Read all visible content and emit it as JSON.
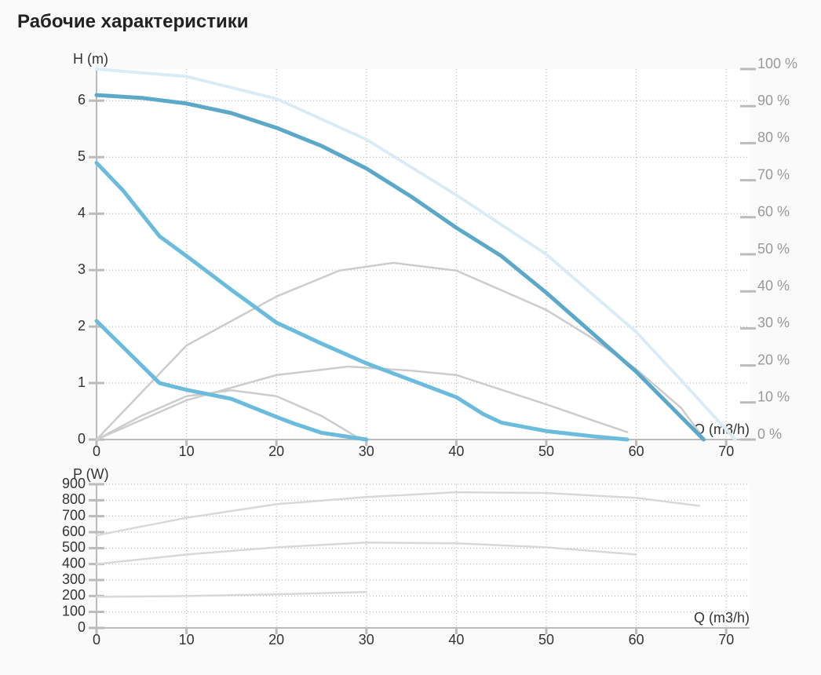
{
  "title": "Рабочие характеристики",
  "chart_data": [
    {
      "type": "line",
      "y_label": "H (m)",
      "x_label": "Q (m3/h)",
      "grid": true,
      "xlim": [
        0,
        72.6
      ],
      "xticks": [
        0,
        10,
        20,
        30,
        40,
        50,
        60,
        70
      ],
      "ylim": [
        0,
        6.56
      ],
      "yticks": [
        0,
        1,
        2,
        3,
        4,
        5,
        6
      ],
      "y2lim": [
        0,
        100
      ],
      "y2ticks": [
        {
          "value": 0,
          "label": "0 %"
        },
        {
          "value": 10,
          "label": "10 %"
        },
        {
          "value": 20,
          "label": "20 %"
        },
        {
          "value": 30,
          "label": "30 %"
        },
        {
          "value": 40,
          "label": "40 %"
        },
        {
          "value": 50,
          "label": "50 %"
        },
        {
          "value": 60,
          "label": "60 %"
        },
        {
          "value": 70,
          "label": "70 %"
        },
        {
          "value": 80,
          "label": "80 %"
        },
        {
          "value": 90,
          "label": "90 %"
        },
        {
          "value": 100,
          "label": "100 %"
        }
      ],
      "series": [
        {
          "color": "#d9ecf5",
          "axis": "y2",
          "line_style": "dotted",
          "x": [
            0,
            10,
            20,
            30,
            40,
            50,
            60,
            65,
            71
          ],
          "values": [
            100,
            98,
            92,
            81,
            66,
            50,
            29,
            16,
            0
          ]
        },
        {
          "color": "#cccccc",
          "axis": "y2",
          "x": [
            0,
            10,
            20,
            27,
            33,
            40,
            50,
            55,
            60,
            65,
            67
          ],
          "values": [
            0,
            25.4,
            38.6,
            45.6,
            47.7,
            45.6,
            35,
            27.5,
            19,
            8.5,
            2
          ]
        },
        {
          "color": "#cccccc",
          "axis": "y2",
          "x": [
            0,
            10,
            20,
            28,
            35,
            40,
            50,
            55,
            59
          ],
          "values": [
            0,
            10.6,
            17.4,
            19.7,
            18.6,
            17.4,
            9.5,
            5.3,
            2
          ]
        },
        {
          "color": "#cccccc",
          "axis": "y2",
          "x": [
            0,
            5,
            10,
            15,
            20,
            25,
            29
          ],
          "values": [
            0,
            6.4,
            11.7,
            13.3,
            11.7,
            6.4,
            0.6
          ]
        },
        {
          "color": "#5ba8c8",
          "x": [
            0,
            5,
            10,
            15,
            20,
            25,
            30,
            35,
            40,
            45,
            50,
            55,
            60,
            65,
            67.5
          ],
          "values": [
            6.1,
            6.05,
            5.95,
            5.78,
            5.52,
            5.2,
            4.8,
            4.3,
            3.75,
            3.25,
            2.6,
            1.9,
            1.2,
            0.4,
            0
          ]
        },
        {
          "color": "#6bbcdc",
          "x": [
            0,
            3,
            7,
            10,
            15,
            20,
            25,
            30,
            35,
            40,
            43,
            45,
            50,
            55,
            59
          ],
          "values": [
            4.9,
            4.4,
            3.6,
            3.25,
            2.65,
            2.07,
            1.7,
            1.35,
            1.05,
            0.75,
            0.45,
            0.3,
            0.15,
            0.06,
            0
          ]
        },
        {
          "color": "#6bbcdc",
          "x": [
            0,
            7,
            10,
            15,
            20,
            22,
            25,
            30
          ],
          "values": [
            2.1,
            1.0,
            0.88,
            0.72,
            0.4,
            0.28,
            0.12,
            0
          ]
        }
      ]
    },
    {
      "type": "line",
      "y_label": "P (W)",
      "x_label": "Q (m3/h)",
      "grid": true,
      "xlim": [
        0,
        72.6
      ],
      "xticks": [
        0,
        10,
        20,
        30,
        40,
        50,
        60,
        70
      ],
      "ylim": [
        0,
        900
      ],
      "yticks": [
        0,
        100,
        200,
        300,
        400,
        500,
        600,
        700,
        800,
        900
      ],
      "series": [
        {
          "color": "#d8d8d8",
          "x": [
            0,
            10,
            20,
            30,
            40,
            50,
            60,
            67
          ],
          "values": [
            580,
            690,
            775,
            820,
            850,
            845,
            815,
            765
          ]
        },
        {
          "color": "#d8d8d8",
          "x": [
            0,
            10,
            20,
            30,
            40,
            50,
            60
          ],
          "values": [
            400,
            460,
            505,
            535,
            530,
            505,
            460
          ]
        },
        {
          "color": "#d8d8d8",
          "x": [
            0,
            10,
            20,
            30
          ],
          "values": [
            195,
            200,
            210,
            225
          ]
        }
      ]
    }
  ]
}
